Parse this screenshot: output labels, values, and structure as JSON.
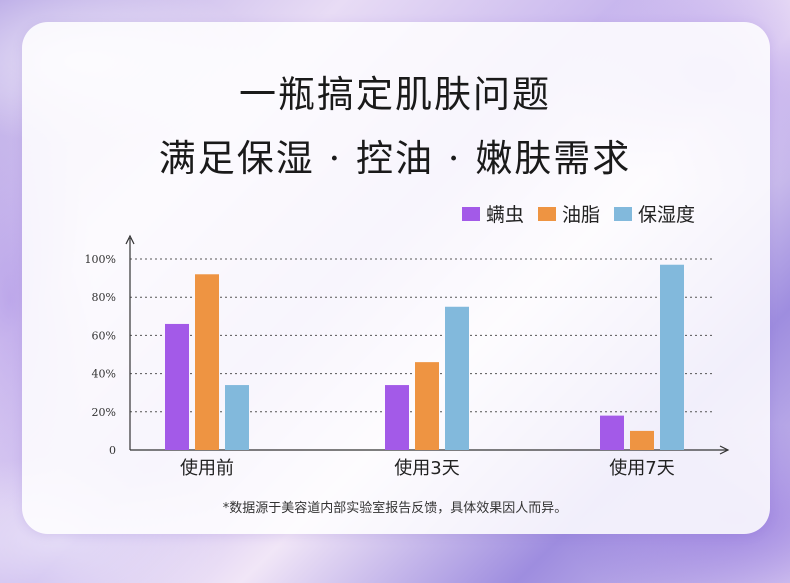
{
  "headline": "一瓶搞定肌肤问题",
  "subheadline": "满足保湿 · 控油 · 嫩肤需求",
  "footnote": "*数据源于美容道内部实验室报告反馈，具体效果因人而异。",
  "colors": {
    "mites": "#a35ae8",
    "oil": "#ee9442",
    "moisture": "#82b9dc"
  },
  "chart_data": {
    "type": "bar",
    "categories": [
      "使用前",
      "使用3天",
      "使用7天"
    ],
    "series": [
      {
        "name": "螨虫",
        "values": [
          66,
          34,
          18
        ]
      },
      {
        "name": "油脂",
        "values": [
          92,
          46,
          10
        ]
      },
      {
        "name": "保湿度",
        "values": [
          34,
          75,
          97
        ]
      }
    ],
    "yticks": [
      "0",
      "20%",
      "40%",
      "60%",
      "80%",
      "100%"
    ],
    "ylim": [
      0,
      100
    ],
    "grid": true,
    "legend_position": "top-right"
  }
}
